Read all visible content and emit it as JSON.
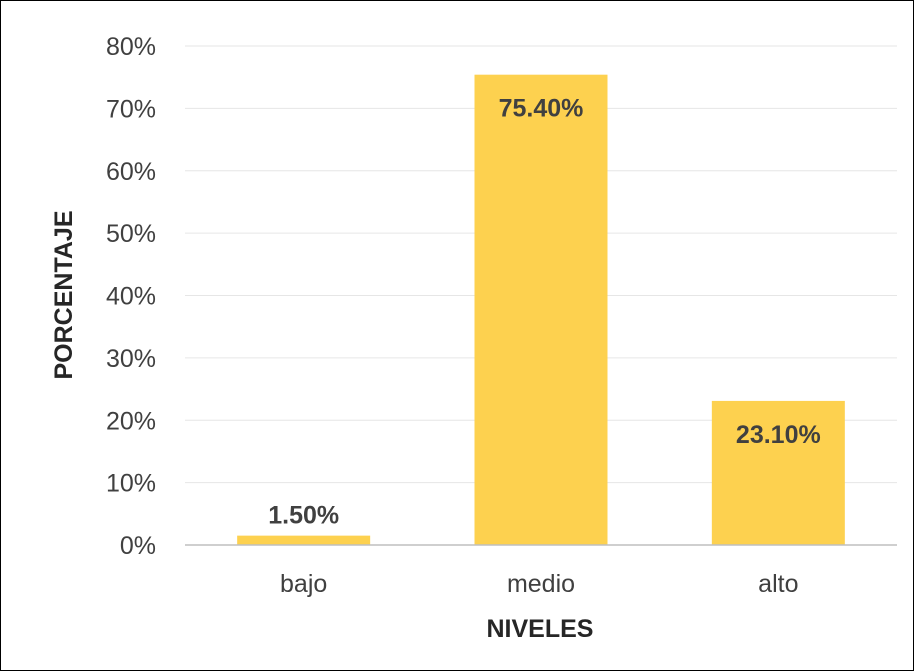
{
  "chart_data": {
    "type": "bar",
    "categories": [
      "bajo",
      "medio",
      "alto"
    ],
    "values": [
      1.5,
      75.4,
      23.1
    ],
    "value_labels": [
      "1.50%",
      "75.40%",
      "23.10%"
    ],
    "xlabel": "NIVELES",
    "ylabel": "PORCENTAJE",
    "ylim": [
      0,
      80
    ],
    "yticks": [
      "0%",
      "10%",
      "20%",
      "30%",
      "40%",
      "50%",
      "60%",
      "70%",
      "80%"
    ],
    "grid": true,
    "legend": false,
    "colors": {
      "bar": "#FDD14F",
      "grid": "#E6E6E6",
      "axis": "#BFBFBF"
    }
  }
}
